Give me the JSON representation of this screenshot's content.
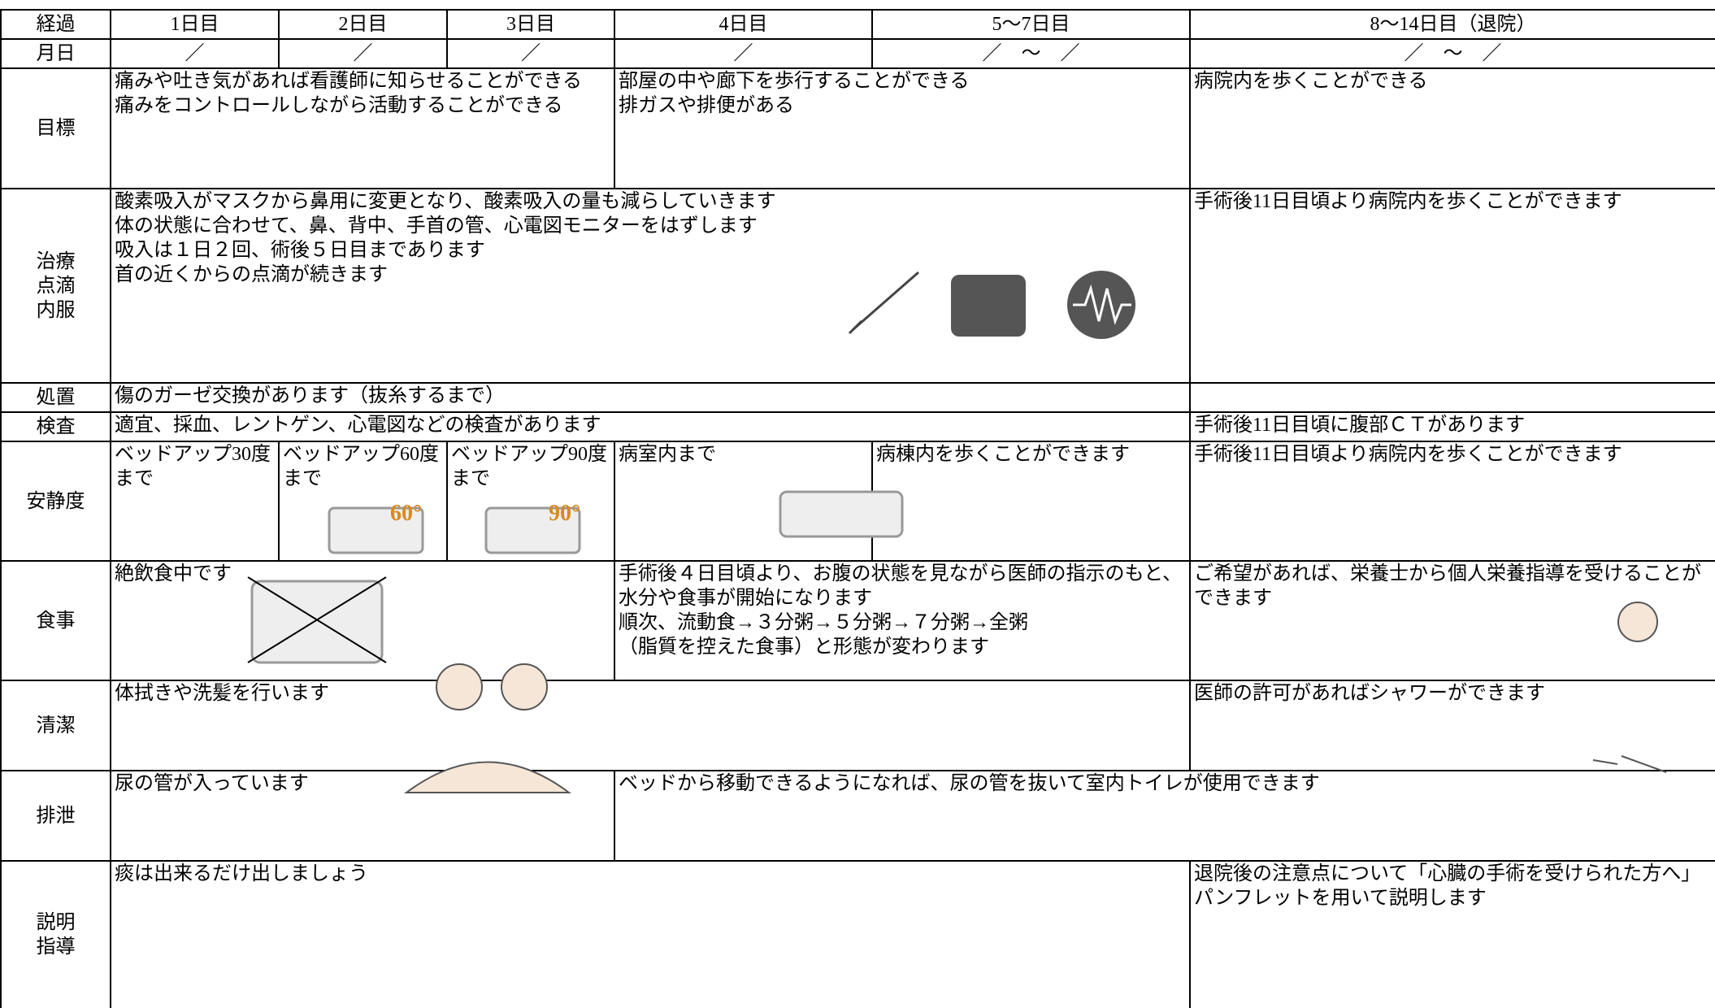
{
  "header": [
    "経過",
    "1日目",
    "2日目",
    "3日目",
    "4日目",
    "5～7日目",
    "8～14日目（退院）"
  ],
  "dates": [
    "月日",
    "／",
    "／",
    "／",
    "／",
    "／　～　／",
    "／　～　／"
  ],
  "rows": [
    {
      "label": [
        "目標"
      ],
      "cells": [
        {
          "span": 3,
          "lines": [
            "痛みや吐き気があれば看護師に知らせることができる",
            "痛みをコントロールしながら活動することができる"
          ]
        },
        {
          "span": 2,
          "lines": [
            "部屋の中や廊下を歩行することができる",
            "排ガスや排便がある"
          ]
        },
        {
          "lines": [
            "病院内を歩くことができる"
          ]
        }
      ]
    },
    {
      "label": [
        "治療",
        "点滴",
        "内服"
      ],
      "cells": [
        {
          "span": 5,
          "lines": [
            "酸素吸入がマスクから鼻用に変更となり、酸素吸入の量も減らしていきます",
            "体の状態に合わせて、鼻、背中、手首の管、心電図モニターをはずします",
            "吸入は１日２回、術後５日目まであります",
            "首の近くからの点滴が続きます"
          ]
        },
        {
          "lines": [
            "手術後11日目頃より病院内を歩くことができます"
          ]
        }
      ]
    },
    {
      "label": [
        "処置"
      ],
      "cells": [
        {
          "span": 5,
          "lines": [
            "傷のガーゼ交換があります（抜糸するまで）"
          ]
        },
        {}
      ]
    },
    {
      "label": [
        "検査"
      ],
      "cells": [
        {
          "span": 5,
          "lines": [
            "適宜、採血、レントゲン、心電図などの検査があります"
          ]
        },
        {
          "lines": [
            "手術後11日目頃に腹部ＣＴがあります"
          ]
        }
      ]
    },
    {
      "label": [
        "安静度"
      ],
      "cells": [
        {
          "lines": [
            "ベッドアップ30度まで"
          ]
        },
        {
          "lines": [
            "ベッドアップ60度まで"
          ]
        },
        {
          "lines": [
            "ベッドアップ90度まで"
          ]
        },
        {
          "lines": [
            "病室内まで"
          ]
        },
        {
          "lines": [
            "病棟内を歩くことができます"
          ]
        },
        {
          "lines": [
            "手術後11日目頃より病院内を歩くことができます"
          ]
        }
      ]
    },
    {
      "label": [
        "食事"
      ],
      "cells": [
        {
          "span": 3,
          "lines": [
            "絶飲食中です"
          ]
        },
        {
          "span": 2,
          "lines": [
            "手術後４日目頃より、お腹の状態を見ながら医師の指示のもと、水分や食事が開始になります",
            "順次、流動食→３分粥→５分粥→７分粥→全粥",
            "（脂質を控えた食事）と形態が変わります"
          ]
        },
        {
          "lines": [
            "ご希望があれば、栄養士から個人栄養指導を受けることができます"
          ]
        }
      ]
    },
    {
      "label": [
        "清潔"
      ],
      "cells": [
        {
          "span": 5,
          "lines": [
            "体拭きや洗髪を行います"
          ]
        },
        {
          "lines": [
            "医師の許可があればシャワーができます"
          ]
        }
      ]
    },
    {
      "label": [
        "排泄"
      ],
      "cells": [
        {
          "span": 3,
          "lines": [
            "尿の管が入っています"
          ]
        },
        {
          "span": 3,
          "lines": [
            "ベッドから移動できるようになれば、尿の管を抜いて室内トイレが使用できます"
          ]
        }
      ]
    },
    {
      "label": [
        "説明",
        "指導"
      ],
      "cells": [
        {
          "span": 5,
          "lines": [
            "痰は出来るだけ出しましょう"
          ]
        },
        {
          "lines": [
            "退院後の注意点について「心臓の手術を受けられた方へ」パンフレットを用いて説明します"
          ]
        }
      ]
    }
  ]
}
